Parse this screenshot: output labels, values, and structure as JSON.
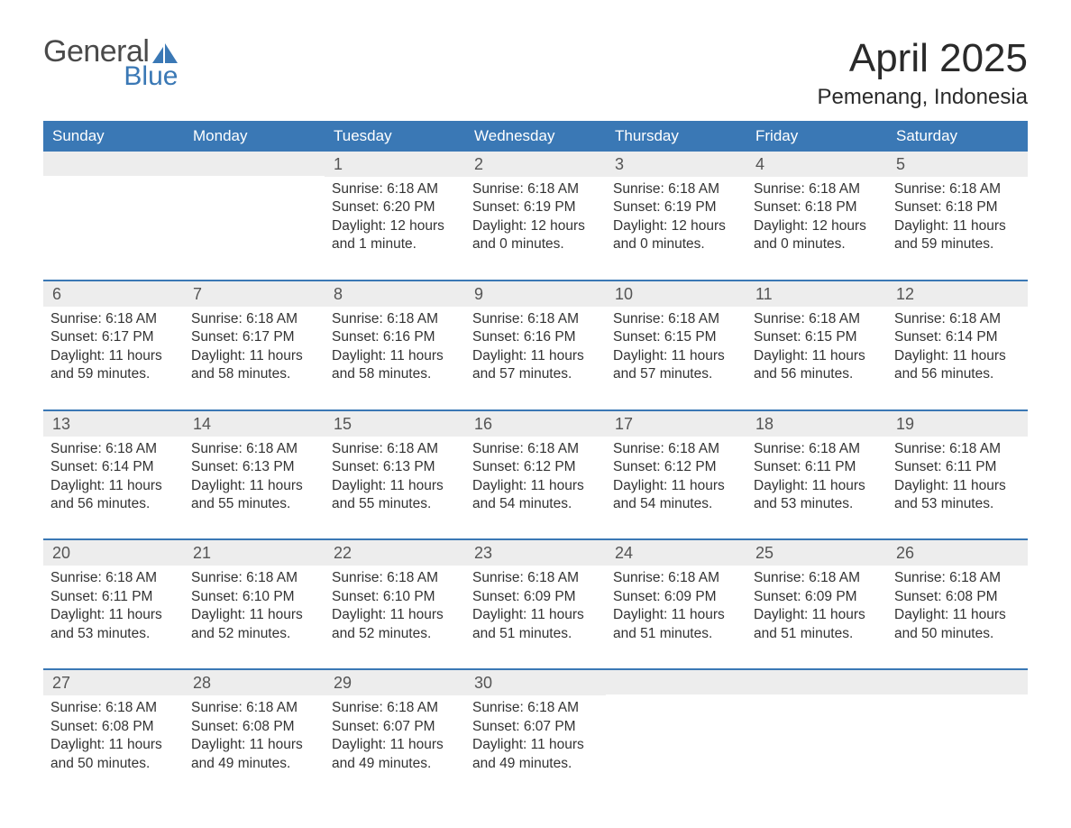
{
  "logo": {
    "general": "General",
    "blue": "Blue",
    "brand_color": "#3a78b5",
    "text_color": "#4a4a4a"
  },
  "title": "April 2025",
  "location": "Pemenang, Indonesia",
  "colors": {
    "header_bg": "#3a78b5",
    "header_text": "#ffffff",
    "date_bg": "#ededed",
    "date_text": "#555555",
    "body_text": "#333333",
    "row_border": "#3a78b5",
    "page_bg": "#ffffff"
  },
  "typography": {
    "title_fontsize": 44,
    "location_fontsize": 24,
    "weekday_fontsize": 17,
    "date_fontsize": 18,
    "body_fontsize": 15.5
  },
  "weekdays": [
    "Sunday",
    "Monday",
    "Tuesday",
    "Wednesday",
    "Thursday",
    "Friday",
    "Saturday"
  ],
  "weeks": [
    [
      {
        "date": "",
        "sunrise": "",
        "sunset": "",
        "daylight1": "",
        "daylight2": ""
      },
      {
        "date": "",
        "sunrise": "",
        "sunset": "",
        "daylight1": "",
        "daylight2": ""
      },
      {
        "date": "1",
        "sunrise": "Sunrise: 6:18 AM",
        "sunset": "Sunset: 6:20 PM",
        "daylight1": "Daylight: 12 hours",
        "daylight2": "and 1 minute."
      },
      {
        "date": "2",
        "sunrise": "Sunrise: 6:18 AM",
        "sunset": "Sunset: 6:19 PM",
        "daylight1": "Daylight: 12 hours",
        "daylight2": "and 0 minutes."
      },
      {
        "date": "3",
        "sunrise": "Sunrise: 6:18 AM",
        "sunset": "Sunset: 6:19 PM",
        "daylight1": "Daylight: 12 hours",
        "daylight2": "and 0 minutes."
      },
      {
        "date": "4",
        "sunrise": "Sunrise: 6:18 AM",
        "sunset": "Sunset: 6:18 PM",
        "daylight1": "Daylight: 12 hours",
        "daylight2": "and 0 minutes."
      },
      {
        "date": "5",
        "sunrise": "Sunrise: 6:18 AM",
        "sunset": "Sunset: 6:18 PM",
        "daylight1": "Daylight: 11 hours",
        "daylight2": "and 59 minutes."
      }
    ],
    [
      {
        "date": "6",
        "sunrise": "Sunrise: 6:18 AM",
        "sunset": "Sunset: 6:17 PM",
        "daylight1": "Daylight: 11 hours",
        "daylight2": "and 59 minutes."
      },
      {
        "date": "7",
        "sunrise": "Sunrise: 6:18 AM",
        "sunset": "Sunset: 6:17 PM",
        "daylight1": "Daylight: 11 hours",
        "daylight2": "and 58 minutes."
      },
      {
        "date": "8",
        "sunrise": "Sunrise: 6:18 AM",
        "sunset": "Sunset: 6:16 PM",
        "daylight1": "Daylight: 11 hours",
        "daylight2": "and 58 minutes."
      },
      {
        "date": "9",
        "sunrise": "Sunrise: 6:18 AM",
        "sunset": "Sunset: 6:16 PM",
        "daylight1": "Daylight: 11 hours",
        "daylight2": "and 57 minutes."
      },
      {
        "date": "10",
        "sunrise": "Sunrise: 6:18 AM",
        "sunset": "Sunset: 6:15 PM",
        "daylight1": "Daylight: 11 hours",
        "daylight2": "and 57 minutes."
      },
      {
        "date": "11",
        "sunrise": "Sunrise: 6:18 AM",
        "sunset": "Sunset: 6:15 PM",
        "daylight1": "Daylight: 11 hours",
        "daylight2": "and 56 minutes."
      },
      {
        "date": "12",
        "sunrise": "Sunrise: 6:18 AM",
        "sunset": "Sunset: 6:14 PM",
        "daylight1": "Daylight: 11 hours",
        "daylight2": "and 56 minutes."
      }
    ],
    [
      {
        "date": "13",
        "sunrise": "Sunrise: 6:18 AM",
        "sunset": "Sunset: 6:14 PM",
        "daylight1": "Daylight: 11 hours",
        "daylight2": "and 56 minutes."
      },
      {
        "date": "14",
        "sunrise": "Sunrise: 6:18 AM",
        "sunset": "Sunset: 6:13 PM",
        "daylight1": "Daylight: 11 hours",
        "daylight2": "and 55 minutes."
      },
      {
        "date": "15",
        "sunrise": "Sunrise: 6:18 AM",
        "sunset": "Sunset: 6:13 PM",
        "daylight1": "Daylight: 11 hours",
        "daylight2": "and 55 minutes."
      },
      {
        "date": "16",
        "sunrise": "Sunrise: 6:18 AM",
        "sunset": "Sunset: 6:12 PM",
        "daylight1": "Daylight: 11 hours",
        "daylight2": "and 54 minutes."
      },
      {
        "date": "17",
        "sunrise": "Sunrise: 6:18 AM",
        "sunset": "Sunset: 6:12 PM",
        "daylight1": "Daylight: 11 hours",
        "daylight2": "and 54 minutes."
      },
      {
        "date": "18",
        "sunrise": "Sunrise: 6:18 AM",
        "sunset": "Sunset: 6:11 PM",
        "daylight1": "Daylight: 11 hours",
        "daylight2": "and 53 minutes."
      },
      {
        "date": "19",
        "sunrise": "Sunrise: 6:18 AM",
        "sunset": "Sunset: 6:11 PM",
        "daylight1": "Daylight: 11 hours",
        "daylight2": "and 53 minutes."
      }
    ],
    [
      {
        "date": "20",
        "sunrise": "Sunrise: 6:18 AM",
        "sunset": "Sunset: 6:11 PM",
        "daylight1": "Daylight: 11 hours",
        "daylight2": "and 53 minutes."
      },
      {
        "date": "21",
        "sunrise": "Sunrise: 6:18 AM",
        "sunset": "Sunset: 6:10 PM",
        "daylight1": "Daylight: 11 hours",
        "daylight2": "and 52 minutes."
      },
      {
        "date": "22",
        "sunrise": "Sunrise: 6:18 AM",
        "sunset": "Sunset: 6:10 PM",
        "daylight1": "Daylight: 11 hours",
        "daylight2": "and 52 minutes."
      },
      {
        "date": "23",
        "sunrise": "Sunrise: 6:18 AM",
        "sunset": "Sunset: 6:09 PM",
        "daylight1": "Daylight: 11 hours",
        "daylight2": "and 51 minutes."
      },
      {
        "date": "24",
        "sunrise": "Sunrise: 6:18 AM",
        "sunset": "Sunset: 6:09 PM",
        "daylight1": "Daylight: 11 hours",
        "daylight2": "and 51 minutes."
      },
      {
        "date": "25",
        "sunrise": "Sunrise: 6:18 AM",
        "sunset": "Sunset: 6:09 PM",
        "daylight1": "Daylight: 11 hours",
        "daylight2": "and 51 minutes."
      },
      {
        "date": "26",
        "sunrise": "Sunrise: 6:18 AM",
        "sunset": "Sunset: 6:08 PM",
        "daylight1": "Daylight: 11 hours",
        "daylight2": "and 50 minutes."
      }
    ],
    [
      {
        "date": "27",
        "sunrise": "Sunrise: 6:18 AM",
        "sunset": "Sunset: 6:08 PM",
        "daylight1": "Daylight: 11 hours",
        "daylight2": "and 50 minutes."
      },
      {
        "date": "28",
        "sunrise": "Sunrise: 6:18 AM",
        "sunset": "Sunset: 6:08 PM",
        "daylight1": "Daylight: 11 hours",
        "daylight2": "and 49 minutes."
      },
      {
        "date": "29",
        "sunrise": "Sunrise: 6:18 AM",
        "sunset": "Sunset: 6:07 PM",
        "daylight1": "Daylight: 11 hours",
        "daylight2": "and 49 minutes."
      },
      {
        "date": "30",
        "sunrise": "Sunrise: 6:18 AM",
        "sunset": "Sunset: 6:07 PM",
        "daylight1": "Daylight: 11 hours",
        "daylight2": "and 49 minutes."
      },
      {
        "date": "",
        "sunrise": "",
        "sunset": "",
        "daylight1": "",
        "daylight2": ""
      },
      {
        "date": "",
        "sunrise": "",
        "sunset": "",
        "daylight1": "",
        "daylight2": ""
      },
      {
        "date": "",
        "sunrise": "",
        "sunset": "",
        "daylight1": "",
        "daylight2": ""
      }
    ]
  ]
}
